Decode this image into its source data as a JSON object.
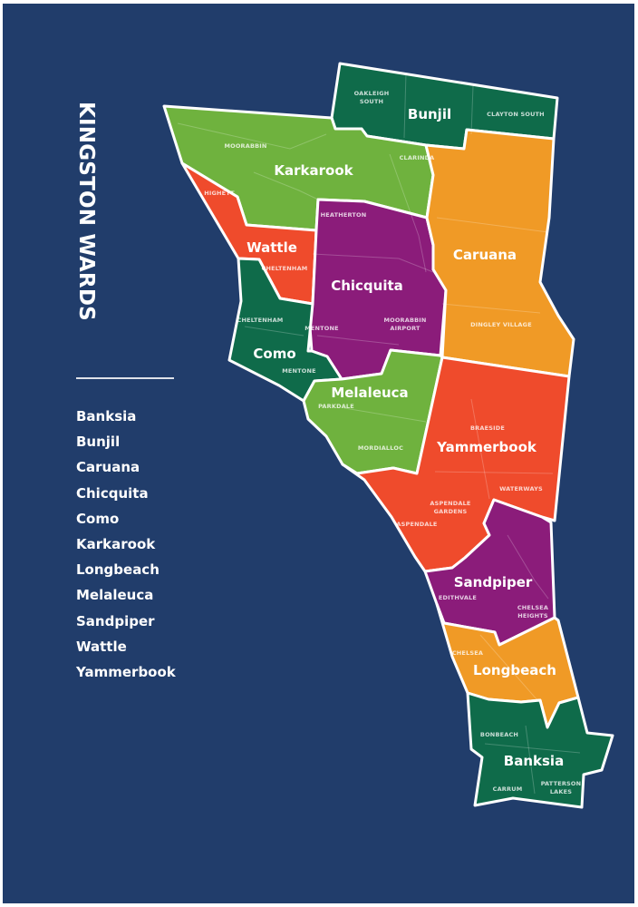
{
  "title": "KINGSTON WARDS",
  "ward_list": [
    "Banksia",
    "Bunjil",
    "Caruana",
    "Chicquita",
    "Como",
    "Karkarook",
    "Longbeach",
    "Melaleuca",
    "Sandpiper",
    "Wattle",
    "Yammerbook"
  ],
  "colors": {
    "background": "#213d6b",
    "dark_green": "#0f6b4a",
    "light_green": "#6fb23e",
    "red_orange": "#ef4b2c",
    "purple": "#8b1c7a",
    "orange": "#f09a26",
    "border": "#ffffff"
  },
  "wards": [
    {
      "name": "Bunjil",
      "color": "dark_green"
    },
    {
      "name": "Karkarook",
      "color": "light_green"
    },
    {
      "name": "Wattle",
      "color": "red_orange"
    },
    {
      "name": "Chicquita",
      "color": "purple"
    },
    {
      "name": "Caruana",
      "color": "orange"
    },
    {
      "name": "Como",
      "color": "dark_green"
    },
    {
      "name": "Melaleuca",
      "color": "light_green"
    },
    {
      "name": "Yammerbook",
      "color": "red_orange"
    },
    {
      "name": "Sandpiper",
      "color": "purple"
    },
    {
      "name": "Longbeach",
      "color": "orange"
    },
    {
      "name": "Banksia",
      "color": "dark_green"
    }
  ],
  "suburbs": [
    "OAKLEIGH",
    "SOUTH",
    "CLAYTON SOUTH",
    "MOORABBIN",
    "CLARINDA",
    "HIGHETT",
    "HEATHERTON",
    "CHELTENHAM",
    "CHELTENHAM",
    "MENTONE",
    "MOORABBIN",
    "AIRPORT",
    "DINGLEY VILLAGE",
    "MENTONE",
    "PARKDALE",
    "MORDIALLOC",
    "BRAESIDE",
    "WATERWAYS",
    "ASPENDALE",
    "GARDENS",
    "ASPENDALE",
    "EDITHVALE",
    "CHELSEA",
    "HEIGHTS",
    "CHELSEA",
    "BONBEACH",
    "PATTERSON",
    "LAKES",
    "CARRUM"
  ]
}
